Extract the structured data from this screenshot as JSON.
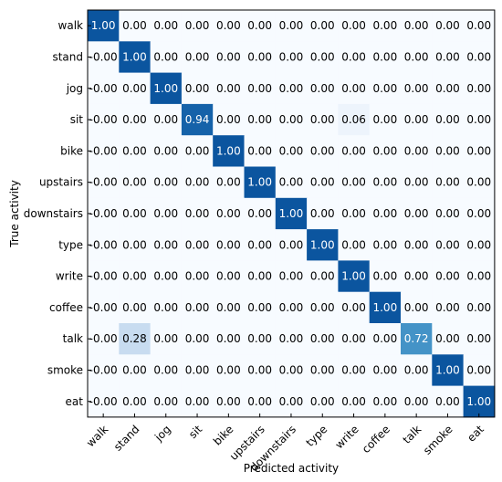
{
  "chart_data": {
    "type": "heatmap",
    "title": "",
    "xlabel": "Predicted activity",
    "ylabel": "True activity",
    "row_labels": [
      "walk",
      "stand",
      "jog",
      "sit",
      "bike",
      "upstairs",
      "downstairs",
      "type",
      "write",
      "coffee",
      "talk",
      "smoke",
      "eat"
    ],
    "col_labels": [
      "walk",
      "stand",
      "jog",
      "sit",
      "bike",
      "upstairs",
      "downstairs",
      "type",
      "write",
      "coffee",
      "talk",
      "smoke",
      "eat"
    ],
    "row_first_label_variant": [
      "0.00",
      "-0.00"
    ],
    "values": [
      [
        1.0,
        0.0,
        0.0,
        0.0,
        0.0,
        0.0,
        0.0,
        0.0,
        0.0,
        0.0,
        0.0,
        0.0,
        0.0
      ],
      [
        0.0,
        1.0,
        0.0,
        0.0,
        0.0,
        0.0,
        0.0,
        0.0,
        0.0,
        0.0,
        0.0,
        0.0,
        0.0
      ],
      [
        0.0,
        0.0,
        1.0,
        0.0,
        0.0,
        0.0,
        0.0,
        0.0,
        0.0,
        0.0,
        0.0,
        0.0,
        0.0
      ],
      [
        0.0,
        0.0,
        0.0,
        0.94,
        0.0,
        0.0,
        0.0,
        0.0,
        0.06,
        0.0,
        0.0,
        0.0,
        0.0
      ],
      [
        0.0,
        0.0,
        0.0,
        0.0,
        1.0,
        0.0,
        0.0,
        0.0,
        0.0,
        0.0,
        0.0,
        0.0,
        0.0
      ],
      [
        0.0,
        0.0,
        0.0,
        0.0,
        0.0,
        1.0,
        0.0,
        0.0,
        0.0,
        0.0,
        0.0,
        0.0,
        0.0
      ],
      [
        0.0,
        0.0,
        0.0,
        0.0,
        0.0,
        0.0,
        1.0,
        0.0,
        0.0,
        0.0,
        0.0,
        0.0,
        0.0
      ],
      [
        0.0,
        0.0,
        0.0,
        0.0,
        0.0,
        0.0,
        0.0,
        1.0,
        0.0,
        0.0,
        0.0,
        0.0,
        0.0
      ],
      [
        0.0,
        0.0,
        0.0,
        0.0,
        0.0,
        0.0,
        0.0,
        0.0,
        1.0,
        0.0,
        0.0,
        0.0,
        0.0
      ],
      [
        0.0,
        0.0,
        0.0,
        0.0,
        0.0,
        0.0,
        0.0,
        0.0,
        0.0,
        1.0,
        0.0,
        0.0,
        0.0
      ],
      [
        0.0,
        0.28,
        0.0,
        0.0,
        0.0,
        0.0,
        0.0,
        0.0,
        0.0,
        0.0,
        0.72,
        0.0,
        0.0
      ],
      [
        0.0,
        0.0,
        0.0,
        0.0,
        0.0,
        0.0,
        0.0,
        0.0,
        0.0,
        0.0,
        0.0,
        1.0,
        0.0
      ],
      [
        0.0,
        0.0,
        0.0,
        0.0,
        0.0,
        0.0,
        0.0,
        0.0,
        0.0,
        0.0,
        0.0,
        0.0,
        1.0
      ]
    ],
    "cell_text": [
      [
        "1.00",
        "0.00",
        "0.00",
        "0.00",
        "0.00",
        "0.00",
        "0.00",
        "0.00",
        "0.00",
        "0.00",
        "0.00",
        "0.00",
        "0.00"
      ],
      [
        "-0.00",
        "1.00",
        "0.00",
        "0.00",
        "0.00",
        "0.00",
        "0.00",
        "0.00",
        "0.00",
        "0.00",
        "0.00",
        "0.00",
        "0.00"
      ],
      [
        "-0.00",
        "0.00",
        "1.00",
        "0.00",
        "0.00",
        "0.00",
        "0.00",
        "0.00",
        "0.00",
        "0.00",
        "0.00",
        "0.00",
        "0.00"
      ],
      [
        "-0.00",
        "0.00",
        "0.00",
        "0.94",
        "0.00",
        "0.00",
        "0.00",
        "0.00",
        "0.06",
        "0.00",
        "0.00",
        "0.00",
        "0.00"
      ],
      [
        "-0.00",
        "0.00",
        "0.00",
        "0.00",
        "1.00",
        "0.00",
        "0.00",
        "0.00",
        "0.00",
        "0.00",
        "0.00",
        "0.00",
        "0.00"
      ],
      [
        "-0.00",
        "0.00",
        "0.00",
        "0.00",
        "0.00",
        "1.00",
        "0.00",
        "0.00",
        "0.00",
        "0.00",
        "0.00",
        "0.00",
        "0.00"
      ],
      [
        "-0.00",
        "0.00",
        "0.00",
        "0.00",
        "0.00",
        "0.00",
        "1.00",
        "0.00",
        "0.00",
        "0.00",
        "0.00",
        "0.00",
        "0.00"
      ],
      [
        "-0.00",
        "0.00",
        "0.00",
        "0.00",
        "0.00",
        "0.00",
        "0.00",
        "1.00",
        "0.00",
        "0.00",
        "0.00",
        "0.00",
        "0.00"
      ],
      [
        "-0.00",
        "0.00",
        "0.00",
        "0.00",
        "0.00",
        "0.00",
        "0.00",
        "0.00",
        "1.00",
        "0.00",
        "0.00",
        "0.00",
        "0.00"
      ],
      [
        "-0.00",
        "0.00",
        "0.00",
        "0.00",
        "0.00",
        "0.00",
        "0.00",
        "0.00",
        "0.00",
        "1.00",
        "0.00",
        "0.00",
        "0.00"
      ],
      [
        "-0.00",
        "0.28",
        "0.00",
        "0.00",
        "0.00",
        "0.00",
        "0.00",
        "0.00",
        "0.00",
        "0.00",
        "0.72",
        "0.00",
        "0.00"
      ],
      [
        "-0.00",
        "0.00",
        "0.00",
        "0.00",
        "0.00",
        "0.00",
        "0.00",
        "0.00",
        "0.00",
        "0.00",
        "0.00",
        "1.00",
        "0.00"
      ],
      [
        "-0.00",
        "0.00",
        "0.00",
        "0.00",
        "0.00",
        "0.00",
        "0.00",
        "0.00",
        "0.00",
        "0.00",
        "0.00",
        "0.00",
        "1.00"
      ]
    ],
    "colormap": "Blues",
    "color_low": "#f7fbff",
    "color_high": "#08519c",
    "text_color_dark": "#000000",
    "text_color_light": "#ffffff",
    "value_range": [
      0,
      1
    ],
    "grid": false,
    "legend": "none"
  }
}
